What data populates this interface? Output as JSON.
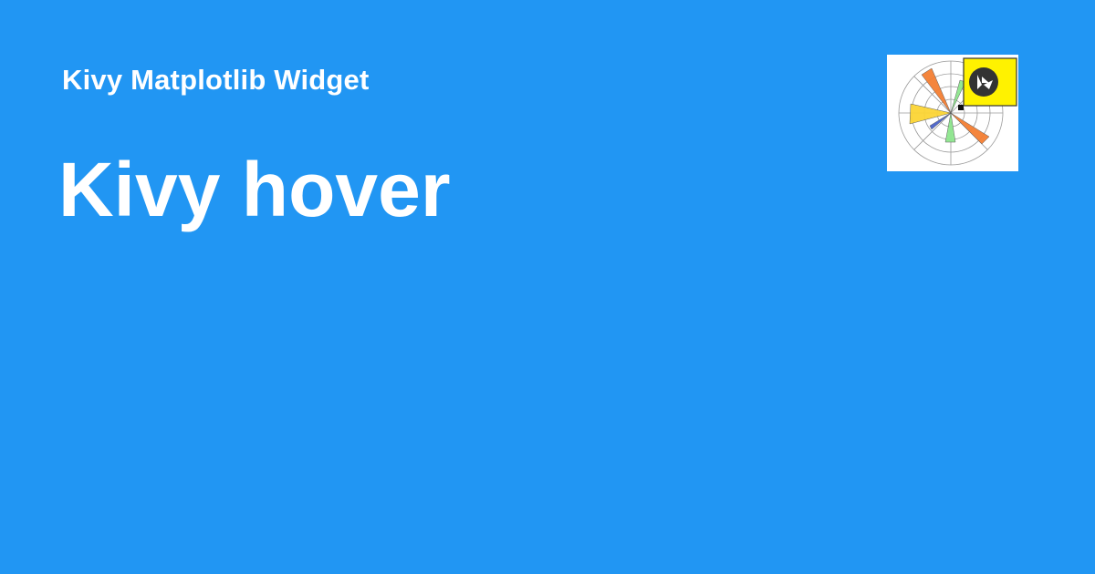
{
  "colors": {
    "background": "#2196f3",
    "text": "#ffffff",
    "logo_background": "#ffffff",
    "badge_yellow": "#fff200",
    "badge_circle": "#333333",
    "petal_orange": "#f47f33",
    "petal_yellow": "#fcd535",
    "petal_green": "#8ee68e",
    "petal_blue": "#4a63c9",
    "grid": "#9a9a9a"
  },
  "header": {
    "site_name": "Kivy Matplotlib Widget"
  },
  "main": {
    "title": "Kivy hover"
  },
  "logo": {
    "icon": "polar-bar-chart-with-kivy-badge-icon"
  }
}
